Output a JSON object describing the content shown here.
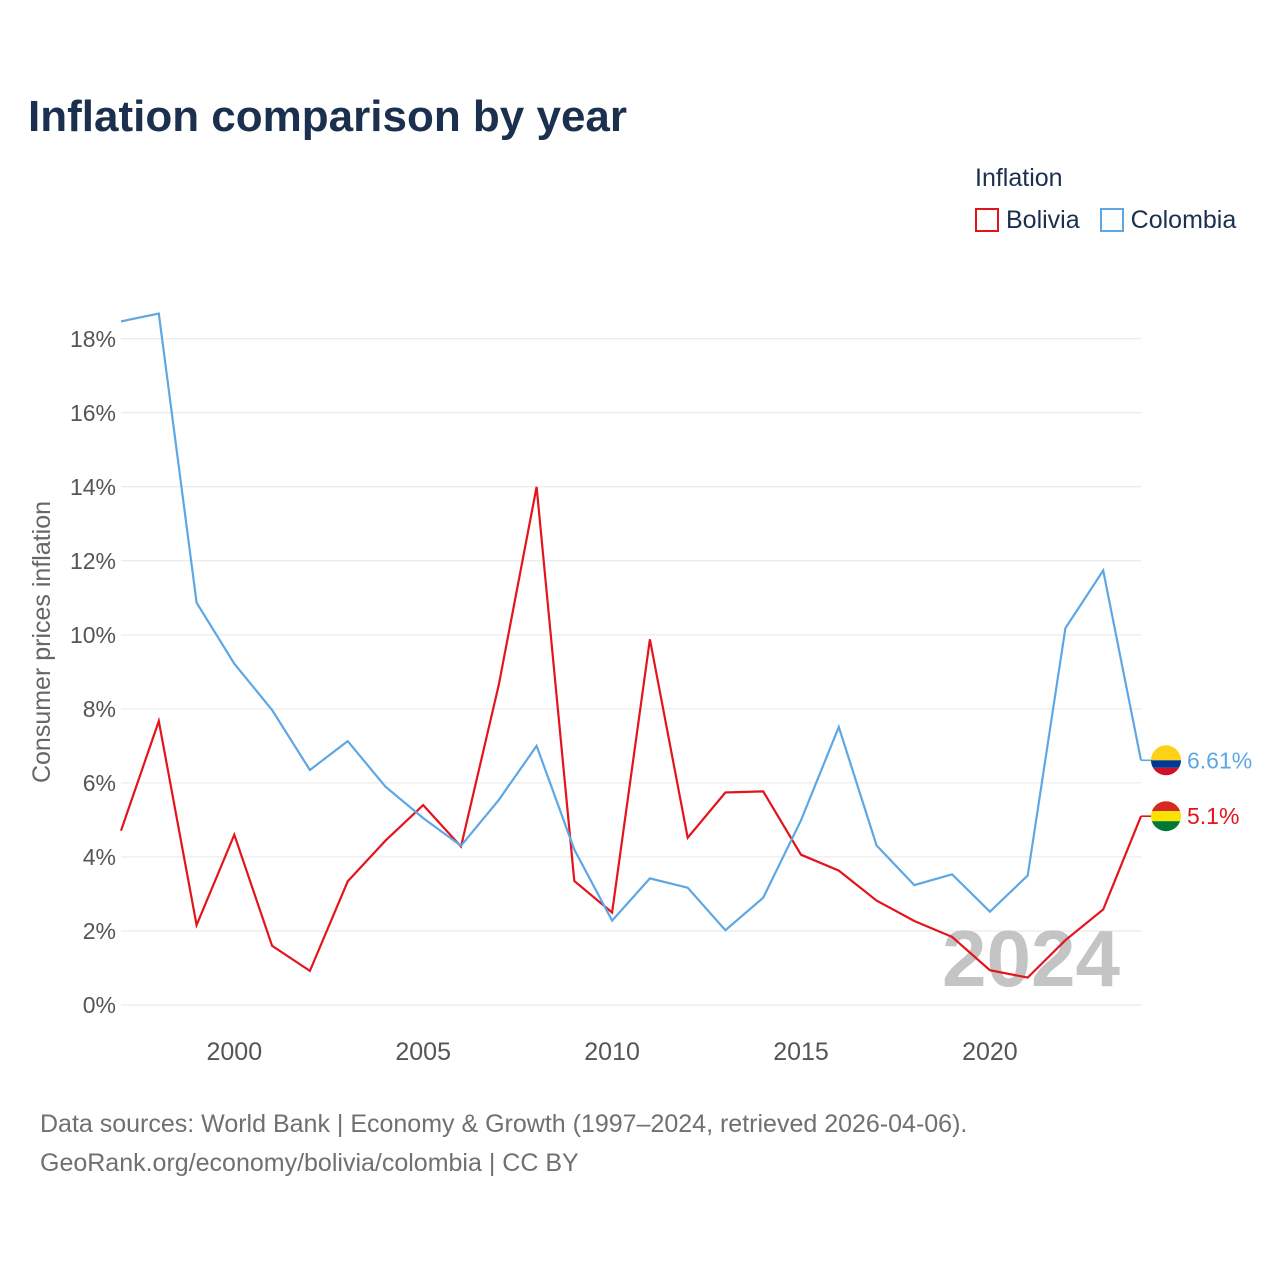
{
  "chart_data": {
    "type": "line",
    "title": "Inflation comparison by year",
    "ylabel": "Consumer prices inflation",
    "legend_title": "Inflation",
    "grid": true,
    "x": [
      1997,
      1998,
      1999,
      2000,
      2001,
      2002,
      2003,
      2004,
      2005,
      2006,
      2007,
      2008,
      2009,
      2010,
      2011,
      2012,
      2013,
      2014,
      2015,
      2016,
      2017,
      2018,
      2019,
      2020,
      2021,
      2022,
      2023,
      2024
    ],
    "xlim": [
      1997,
      2024
    ],
    "ylim": [
      0,
      18.75
    ],
    "x_ticks": [
      2000,
      2005,
      2010,
      2015,
      2020
    ],
    "x_tick_labels": [
      "2000",
      "2005",
      "2010",
      "2015",
      "2020"
    ],
    "y_ticks": [
      0,
      2,
      4,
      6,
      8,
      10,
      12,
      14,
      16,
      18
    ],
    "y_tick_labels": [
      "0%",
      "2%",
      "4%",
      "6%",
      "8%",
      "10%",
      "12%",
      "14%",
      "16%",
      "18%"
    ],
    "watermark_year": "2024",
    "series": [
      {
        "name": "Bolivia",
        "color": "#e3141b",
        "values": [
          4.71,
          7.67,
          2.16,
          4.6,
          1.6,
          0.92,
          3.34,
          4.44,
          5.4,
          4.28,
          8.65,
          14.0,
          3.35,
          2.5,
          9.88,
          4.52,
          5.74,
          5.77,
          4.06,
          3.63,
          2.82,
          2.27,
          1.84,
          0.94,
          0.74,
          1.75,
          2.58,
          5.1
        ],
        "end_label": "5.1%",
        "flag_colors": [
          "#d52b1e",
          "#f9e300",
          "#007934"
        ]
      },
      {
        "name": "Colombia",
        "color": "#5ea7e5",
        "values": [
          18.47,
          18.68,
          10.87,
          9.22,
          7.97,
          6.35,
          7.13,
          5.9,
          5.05,
          4.3,
          5.54,
          7.0,
          4.2,
          2.28,
          3.42,
          3.17,
          2.02,
          2.9,
          4.99,
          7.51,
          4.31,
          3.24,
          3.53,
          2.52,
          3.5,
          10.18,
          11.74,
          6.61
        ],
        "end_label": "6.61%",
        "flag_colors": [
          "#fcd116",
          "#003893",
          "#ce1126"
        ]
      }
    ]
  },
  "footer": {
    "sources": "Data sources: World Bank | Economy & Growth (1997–2024, retrieved 2026-04-06).",
    "credit": "GeoRank.org/economy/bolivia/colombia | CC BY"
  }
}
